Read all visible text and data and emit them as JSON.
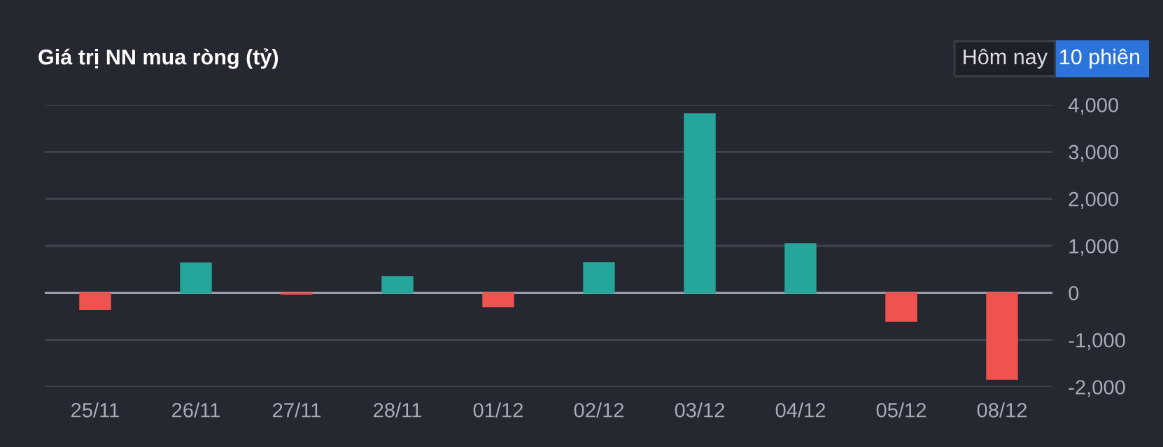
{
  "chart_data": {
    "type": "bar",
    "title": "Giá trị NN mua ròng (tỷ)",
    "categories": [
      "25/11",
      "26/11",
      "27/11",
      "28/11",
      "01/12",
      "02/12",
      "03/12",
      "04/12",
      "05/12",
      "08/12"
    ],
    "values": [
      -350,
      630,
      -20,
      340,
      -290,
      640,
      3800,
      1040,
      -600,
      -1830
    ],
    "colors": [
      "#ef5350",
      "#26a69a",
      "#ef5350",
      "#26a69a",
      "#ef5350",
      "#26a69a",
      "#26a69a",
      "#26a69a",
      "#ef5350",
      "#ef5350"
    ],
    "ylim": [
      -2000,
      4000
    ],
    "yticks": [
      {
        "value": -2000,
        "label": "-2,000"
      },
      {
        "value": -1000,
        "label": "-1,000"
      },
      0,
      {
        "value": 1000,
        "label": "1,000"
      },
      {
        "value": 2000,
        "label": "2,000"
      },
      {
        "value": 3000,
        "label": "3,000"
      },
      {
        "value": 4000,
        "label": "4,000"
      }
    ],
    "grid": "y",
    "annotations": [
      "Hôm nay",
      "10 phiên"
    ]
  }
}
